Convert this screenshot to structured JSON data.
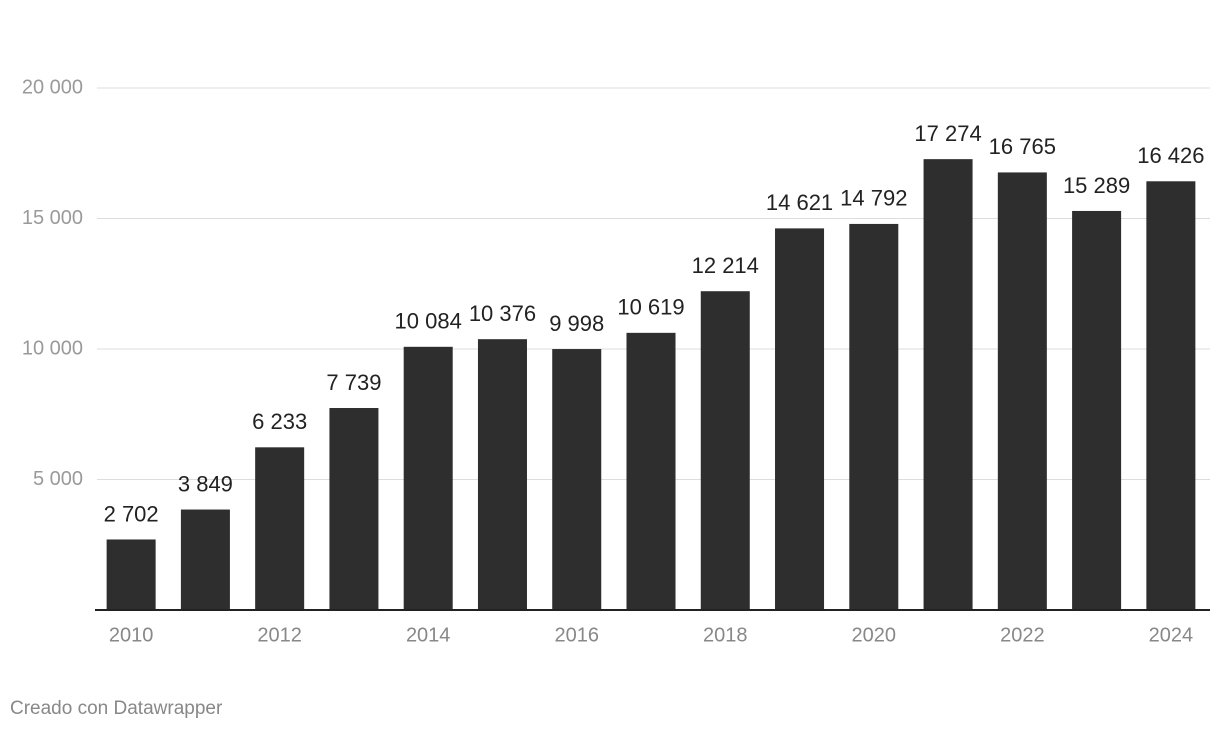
{
  "chart_data": {
    "type": "bar",
    "categories": [
      "2010",
      null,
      "2012",
      null,
      "2014",
      null,
      "2016",
      null,
      "2018",
      null,
      "2020",
      null,
      "2022",
      null,
      "2024"
    ],
    "values": [
      2702,
      3849,
      6233,
      7739,
      10084,
      10376,
      9998,
      10619,
      12214,
      14621,
      14792,
      17274,
      16765,
      15289,
      16426
    ],
    "value_labels": [
      "2 702",
      "3 849",
      "6 233",
      "7 739",
      "10 084",
      "10 376",
      "9 998",
      "10 619",
      "12 214",
      "14 621",
      "14 792",
      "17 274",
      "16 765",
      "15 289",
      "16 426"
    ],
    "color": "#2e2e2e",
    "ylim": [
      0,
      20000
    ],
    "yticks": [
      {
        "value": 5000,
        "label": "5 000"
      },
      {
        "value": 10000,
        "label": "10 000"
      },
      {
        "value": 15000,
        "label": "15 000"
      },
      {
        "value": 20000,
        "label": "20 000"
      }
    ],
    "grid": true,
    "credit": "Creado con Datawrapper"
  }
}
